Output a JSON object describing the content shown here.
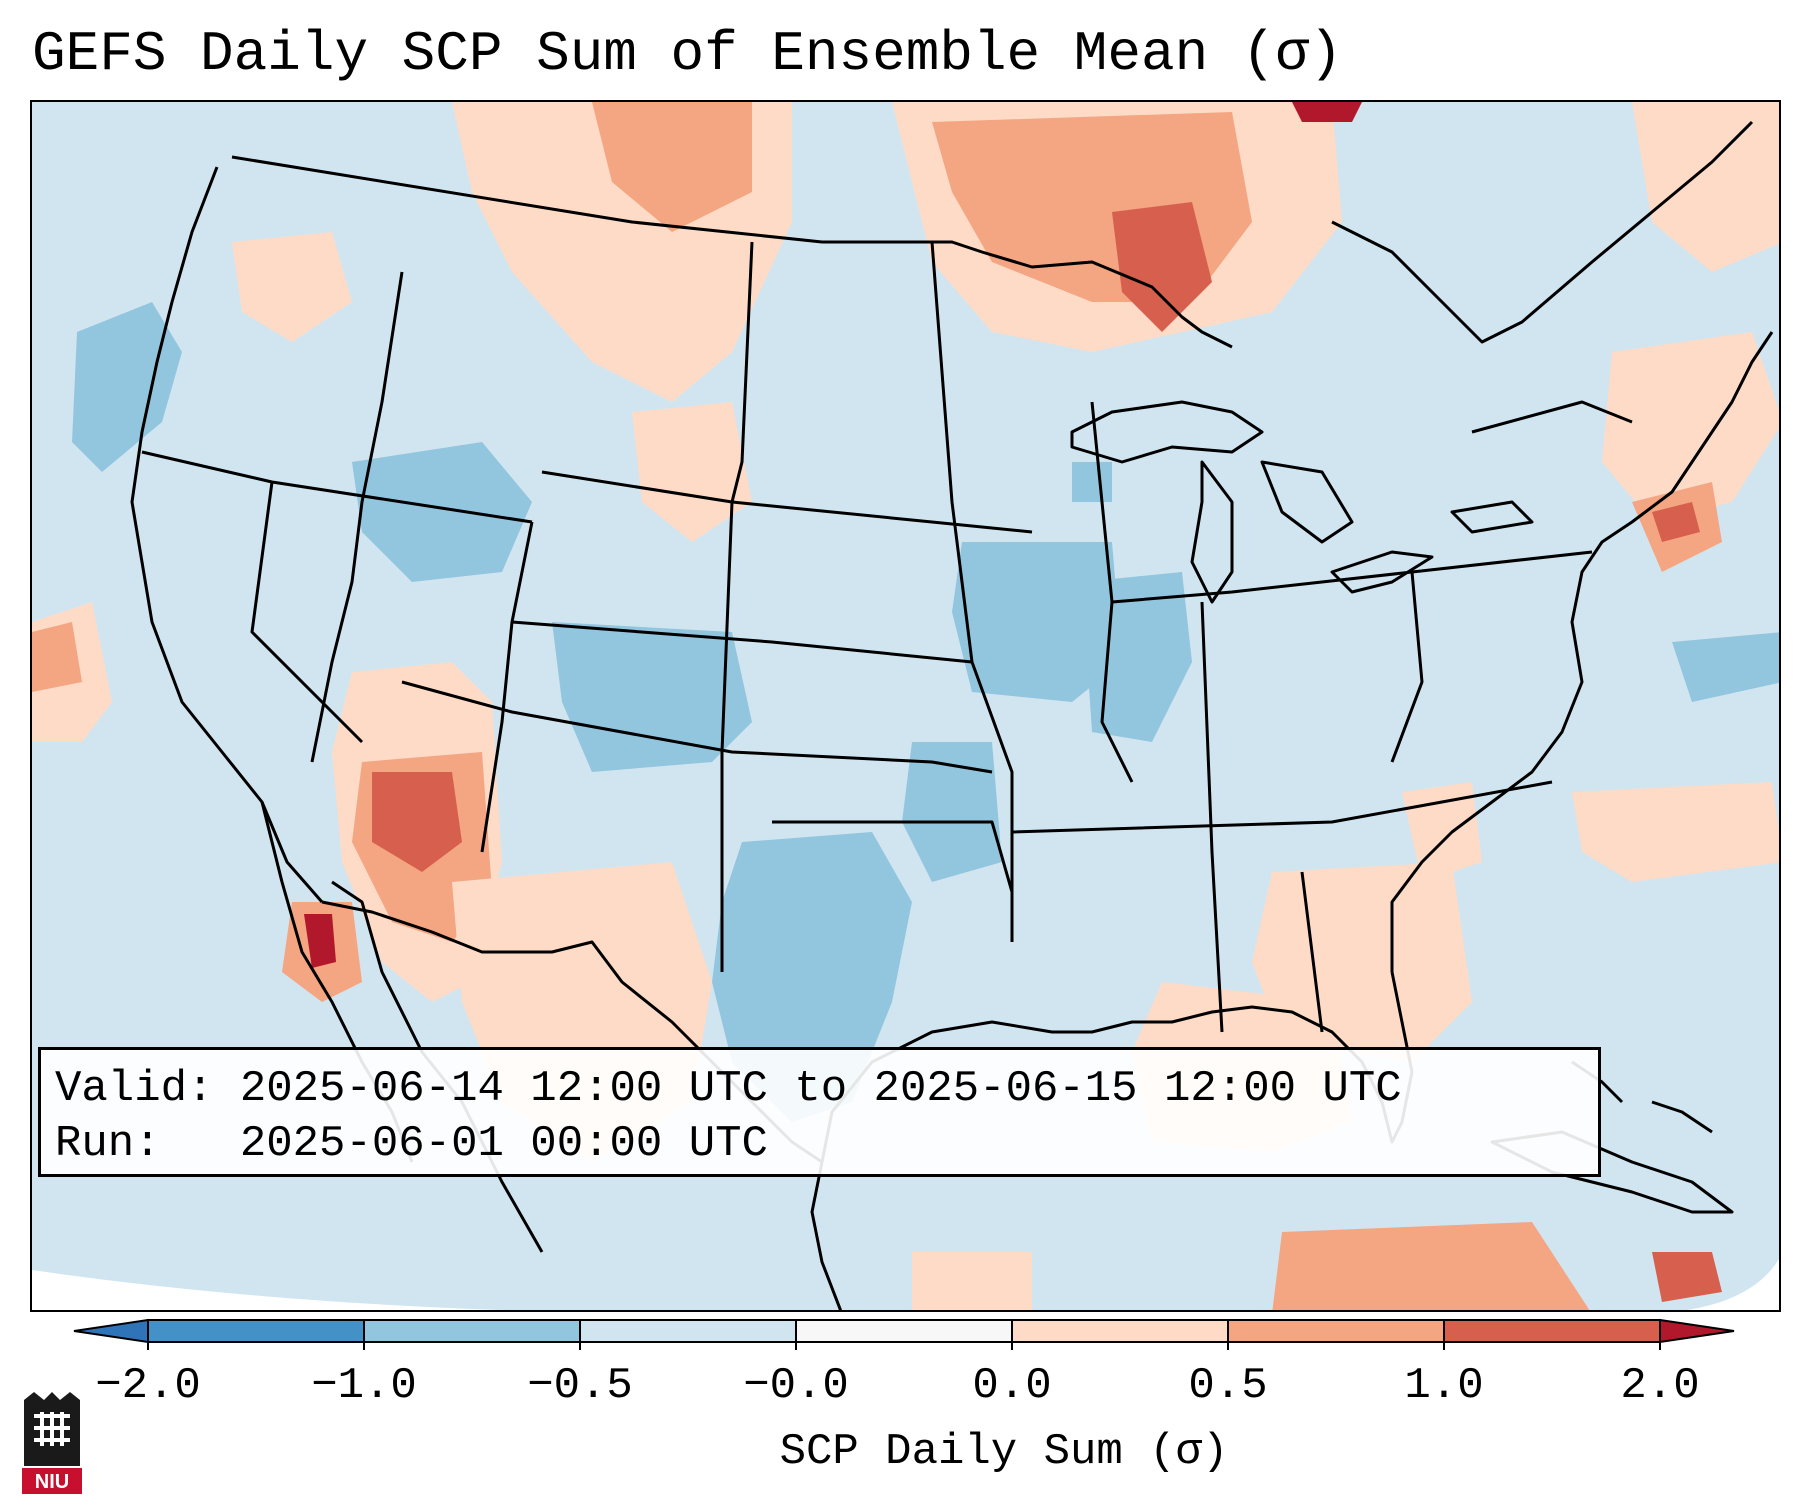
{
  "title": "GEFS Daily SCP Sum of Ensemble Mean (σ)",
  "info": {
    "valid_label": "Valid:",
    "valid_text": "2025-06-14 12:00 UTC to 2025-06-15 12:00 UTC",
    "run_label": "Run:",
    "run_text": "2025-06-01 00:00 UTC"
  },
  "colorbar": {
    "label": "SCP Daily Sum (σ)",
    "ticks": [
      "−2.0",
      "−1.0",
      "−0.5",
      "−0.0",
      "0.0",
      "0.5",
      "1.0",
      "2.0"
    ],
    "colors": {
      "under": "#2f74b8",
      "bins": [
        "#4391c6",
        "#92c5de",
        "#d1e5f0",
        "#f7f7f7",
        "#fddbc7",
        "#f4a582",
        "#d6604d"
      ],
      "over": "#b2182b"
    }
  },
  "map": {
    "background_color": "#d1e5f0",
    "ocean_outside_color": "#ffffff",
    "border_color": "#000000"
  },
  "logo": {
    "text": "NIU",
    "icon": "niu-university-logo-icon"
  }
}
